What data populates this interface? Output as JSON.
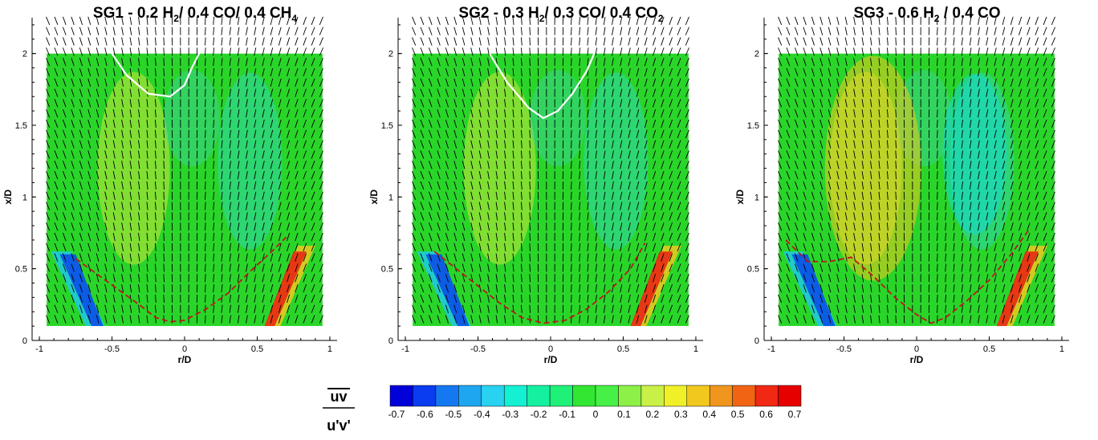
{
  "colors": {
    "mid": "#2ad52a",
    "neg": "#1f8fe0",
    "pos": "#e0661c",
    "contour_white": "#ffffff",
    "contour_red": "#c0161c",
    "colorbar": [
      "#0000d8",
      "#0a3cf0",
      "#1478f0",
      "#1ea6f0",
      "#28d2f0",
      "#14f0d2",
      "#14f0a0",
      "#1ef078",
      "#32e632",
      "#46f046",
      "#8cf046",
      "#c8f046",
      "#f0f028",
      "#f0c81e",
      "#f0961e",
      "#f06414",
      "#f02814",
      "#e60000"
    ]
  },
  "colorbar": {
    "ticks": [
      "-0.7",
      "-0.6",
      "-0.5",
      "-0.4",
      "-0.3",
      "-0.2",
      "-0.1",
      "0",
      "0.1",
      "0.2",
      "0.3",
      "0.4",
      "0.5",
      "0.6",
      "0.7"
    ],
    "label_num": "uv",
    "label_den": "u'v'"
  },
  "chart_data": [
    {
      "type": "heatmap",
      "title_parts": [
        "SG1 - 0.2 H",
        "2",
        "/ 0.4 CO/ 0.4 CH",
        "4"
      ],
      "xlabel": "r/D",
      "ylabel": "x/D",
      "xlim": [
        -1.05,
        1.05
      ],
      "ylim": [
        0,
        2.25
      ],
      "xticks": [
        "-1",
        "-0.5",
        "0",
        "0.5",
        "1"
      ],
      "yticks": [
        "0",
        "0.5",
        "1",
        "1.5",
        "2"
      ],
      "field_extent": {
        "x": [
          -0.95,
          0.95
        ],
        "y": [
          0.1,
          2.0
        ]
      },
      "white_contour": [
        [
          -0.5,
          2.0
        ],
        [
          -0.4,
          1.85
        ],
        [
          -0.25,
          1.72
        ],
        [
          -0.1,
          1.7
        ],
        [
          0.0,
          1.78
        ],
        [
          0.05,
          1.9
        ],
        [
          0.1,
          2.0
        ]
      ],
      "red_contour": [
        [
          -0.75,
          0.57
        ],
        [
          -0.6,
          0.46
        ],
        [
          -0.45,
          0.35
        ],
        [
          -0.3,
          0.24
        ],
        [
          -0.2,
          0.16
        ],
        [
          -0.1,
          0.13
        ],
        [
          0.0,
          0.14
        ],
        [
          0.15,
          0.22
        ],
        [
          0.3,
          0.33
        ],
        [
          0.45,
          0.48
        ],
        [
          0.6,
          0.62
        ],
        [
          0.7,
          0.72
        ]
      ]
    },
    {
      "type": "heatmap",
      "title_parts": [
        "SG2 - 0.3 H",
        "2",
        "/ 0.3 CO/ 0.4 CO",
        "2"
      ],
      "xlabel": "r/D",
      "ylabel": "x/D",
      "xlim": [
        -1.05,
        1.05
      ],
      "ylim": [
        0,
        2.25
      ],
      "xticks": [
        "-1",
        "-0.5",
        "0",
        "0.5",
        "1"
      ],
      "yticks": [
        "0",
        "0.5",
        "1",
        "1.5",
        "2"
      ],
      "field_extent": {
        "x": [
          -0.95,
          0.95
        ],
        "y": [
          0.1,
          2.0
        ]
      },
      "white_contour": [
        [
          -0.42,
          2.0
        ],
        [
          -0.3,
          1.8
        ],
        [
          -0.15,
          1.62
        ],
        [
          -0.05,
          1.55
        ],
        [
          0.05,
          1.6
        ],
        [
          0.15,
          1.72
        ],
        [
          0.25,
          1.88
        ],
        [
          0.3,
          2.0
        ]
      ],
      "red_contour": [
        [
          -0.8,
          0.62
        ],
        [
          -0.65,
          0.5
        ],
        [
          -0.5,
          0.38
        ],
        [
          -0.35,
          0.26
        ],
        [
          -0.2,
          0.16
        ],
        [
          -0.05,
          0.12
        ],
        [
          0.1,
          0.14
        ],
        [
          0.25,
          0.22
        ],
        [
          0.4,
          0.34
        ],
        [
          0.55,
          0.5
        ],
        [
          0.65,
          0.68
        ]
      ]
    },
    {
      "type": "heatmap",
      "title_parts": [
        "SG3 - 0.6 H",
        "2",
        " / 0.4 CO",
        ""
      ],
      "xlabel": "r/D",
      "ylabel": "x/D",
      "xlim": [
        -1.05,
        1.05
      ],
      "ylim": [
        0,
        2.25
      ],
      "xticks": [
        "-1",
        "-0.5",
        "0",
        "0.5",
        "1"
      ],
      "yticks": [
        "0",
        "0.5",
        "1",
        "1.5",
        "2"
      ],
      "field_extent": {
        "x": [
          -0.95,
          0.95
        ],
        "y": [
          0.1,
          2.0
        ]
      },
      "white_contour": [],
      "red_contour": [
        [
          -0.9,
          0.7
        ],
        [
          -0.75,
          0.55
        ],
        [
          -0.6,
          0.55
        ],
        [
          -0.45,
          0.58
        ],
        [
          -0.3,
          0.45
        ],
        [
          -0.15,
          0.3
        ],
        [
          0.0,
          0.18
        ],
        [
          0.1,
          0.12
        ],
        [
          0.2,
          0.16
        ],
        [
          0.35,
          0.28
        ],
        [
          0.5,
          0.42
        ],
        [
          0.65,
          0.6
        ],
        [
          0.78,
          0.78
        ]
      ]
    }
  ]
}
